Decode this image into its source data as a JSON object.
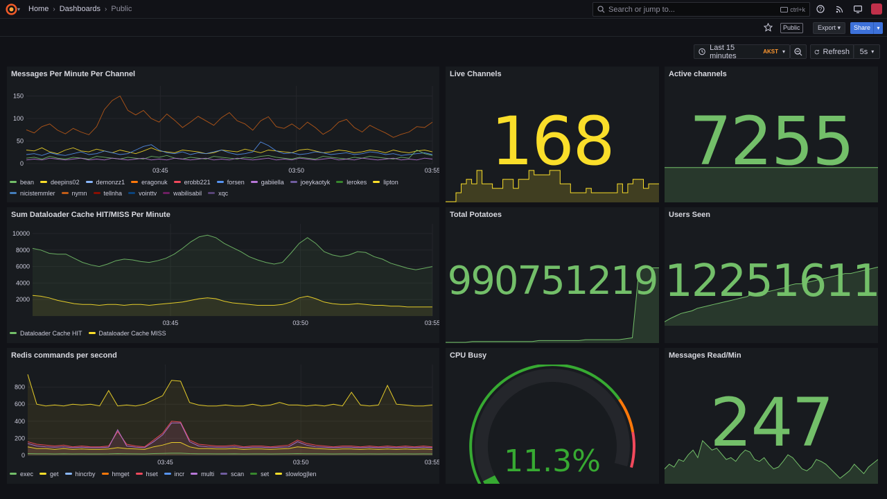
{
  "nav": {
    "breadcrumbs": [
      "Home",
      "Dashboards",
      "Public"
    ],
    "search_placeholder": "Search or jump to...",
    "search_shortcut": "ctrl+k"
  },
  "toolbar": {
    "public_label": "Public",
    "export_label": "Export",
    "share_label": "Share",
    "time_range": "Last 15 minutes",
    "timezone": "AKST",
    "refresh_label": "Refresh",
    "refresh_interval": "5s"
  },
  "panels": {
    "messages": {
      "title": "Messages Per Minute Per Channel",
      "legend": [
        {
          "name": "bean",
          "color": "#73bf69"
        },
        {
          "name": "deepins02",
          "color": "#fade2a"
        },
        {
          "name": "demonzz1",
          "color": "#8ab8ff"
        },
        {
          "name": "eragonuk",
          "color": "#ff780a"
        },
        {
          "name": "erobb221",
          "color": "#f2495c"
        },
        {
          "name": "forsen",
          "color": "#5794f2"
        },
        {
          "name": "gabiiella",
          "color": "#b877d9"
        },
        {
          "name": "joeykaotyk",
          "color": "#705da0"
        },
        {
          "name": "lerokes",
          "color": "#37872d"
        },
        {
          "name": "lipton",
          "color": "#fade2a"
        },
        {
          "name": "nicistemmler",
          "color": "#447ebc"
        },
        {
          "name": "nymn",
          "color": "#c15c17"
        },
        {
          "name": "tellnha",
          "color": "#890f02"
        },
        {
          "name": "vointtv",
          "color": "#0a437c"
        },
        {
          "name": "wabilisabil",
          "color": "#6d1f62"
        },
        {
          "name": "xqc",
          "color": "#584477"
        }
      ]
    },
    "live": {
      "title": "Live Channels",
      "value": "168",
      "color": "#fade2a"
    },
    "active": {
      "title": "Active channels",
      "value": "7255",
      "color": "#73bf69"
    },
    "cache": {
      "title": "Sum Dataloader Cache HIT/MISS Per Minute",
      "legend": [
        {
          "name": "Dataloader Cache HIT",
          "color": "#73bf69"
        },
        {
          "name": "Dataloader Cache MISS",
          "color": "#fade2a"
        }
      ]
    },
    "potatoes": {
      "title": "Total Potatoes",
      "value": "990751219",
      "color": "#73bf69"
    },
    "users": {
      "title": "Users Seen",
      "value": "12251611",
      "color": "#73bf69"
    },
    "redis": {
      "title": "Redis commands per second",
      "legend": [
        {
          "name": "exec",
          "color": "#73bf69"
        },
        {
          "name": "get",
          "color": "#fade2a"
        },
        {
          "name": "hincrby",
          "color": "#8ab8ff"
        },
        {
          "name": "hmget",
          "color": "#ff780a"
        },
        {
          "name": "hset",
          "color": "#f2495c"
        },
        {
          "name": "incr",
          "color": "#5794f2"
        },
        {
          "name": "multi",
          "color": "#b877d9"
        },
        {
          "name": "scan",
          "color": "#705da0"
        },
        {
          "name": "set",
          "color": "#37872d"
        },
        {
          "name": "slowlog|len",
          "color": "#fade2a"
        }
      ]
    },
    "cpu": {
      "title": "CPU Busy",
      "value": "11.3%",
      "percent": 11.3,
      "color": "#37aa32"
    },
    "msgread": {
      "title": "Messages Read/Min",
      "value": "247",
      "color": "#73bf69"
    }
  },
  "chart_data": [
    {
      "type": "line",
      "title": "Messages Per Minute Per Channel",
      "x_ticks": [
        "03:45",
        "03:50",
        "03:55"
      ],
      "y_ticks": [
        0,
        50,
        100,
        150
      ],
      "ylim": [
        0,
        160
      ],
      "series": [
        {
          "name": "nymn",
          "color": "#c15c17",
          "values": [
            75,
            68,
            82,
            88,
            74,
            66,
            78,
            70,
            64,
            82,
            120,
            140,
            150,
            118,
            108,
            118,
            100,
            92,
            110,
            96,
            80,
            92,
            105,
            95,
            85,
            102,
            113,
            95,
            88,
            74,
            95,
            104,
            82,
            78,
            88,
            76,
            92,
            80,
            65,
            75,
            92,
            98,
            80,
            70,
            85,
            76,
            68,
            58,
            65,
            70,
            82,
            80,
            92
          ]
        },
        {
          "name": "lipton",
          "color": "#fade2a",
          "values": [
            30,
            28,
            35,
            26,
            22,
            30,
            35,
            28,
            26,
            32,
            28,
            24,
            30,
            26,
            22,
            28,
            35,
            28,
            26,
            24,
            30,
            28,
            26,
            22,
            24,
            30,
            28,
            26,
            32,
            28,
            24,
            30,
            28,
            26,
            24,
            30,
            32,
            28,
            24,
            26,
            30,
            28,
            24,
            26,
            30,
            28,
            24,
            30,
            26,
            24,
            28,
            30,
            26
          ]
        },
        {
          "name": "forsen",
          "color": "#5794f2",
          "values": [
            20,
            22,
            18,
            24,
            20,
            18,
            22,
            26,
            20,
            22,
            28,
            24,
            20,
            22,
            30,
            38,
            42,
            30,
            24,
            22,
            26,
            20,
            24,
            22,
            26,
            30,
            24,
            20,
            22,
            26,
            48,
            40,
            28,
            22,
            24,
            20,
            22,
            26,
            24,
            20,
            22,
            24,
            20,
            22,
            26,
            24,
            20,
            22,
            18,
            20,
            22,
            24,
            20
          ]
        },
        {
          "name": "bean",
          "color": "#73bf69",
          "values": [
            12,
            14,
            10,
            16,
            12,
            10,
            14,
            12,
            10,
            16,
            14,
            12,
            10,
            14,
            12,
            10,
            16,
            14,
            18,
            12,
            10,
            14,
            12,
            10,
            16,
            14,
            12,
            10,
            14,
            12,
            16,
            18,
            14,
            12,
            10,
            14,
            12,
            10,
            16,
            14,
            12,
            10,
            14,
            12,
            16,
            14,
            12,
            10,
            14,
            12,
            30,
            22,
            18
          ]
        },
        {
          "name": "gabiiella",
          "color": "#b877d9",
          "values": [
            8,
            10,
            8,
            12,
            10,
            8,
            10,
            12,
            8,
            10,
            8,
            12,
            10,
            8,
            10,
            12,
            8,
            10,
            8,
            12,
            10,
            8,
            10,
            12,
            8,
            10,
            8,
            12,
            10,
            8,
            10,
            12,
            8,
            10,
            8,
            12,
            10,
            8,
            10,
            12,
            8,
            10,
            8,
            12,
            10,
            8,
            10,
            12,
            8,
            10,
            8,
            12,
            10
          ]
        }
      ]
    },
    {
      "type": "line",
      "title": "Sum Dataloader Cache HIT/MISS Per Minute",
      "x_ticks": [
        "03:45",
        "03:50",
        "03:55"
      ],
      "y_ticks": [
        2000,
        4000,
        6000,
        8000,
        10000
      ],
      "ylim": [
        0,
        10500
      ],
      "series": [
        {
          "name": "Dataloader Cache HIT",
          "color": "#73bf69",
          "values": [
            8200,
            8000,
            7600,
            7500,
            7500,
            7000,
            6500,
            6200,
            6000,
            6300,
            6700,
            6900,
            6800,
            6600,
            6500,
            6700,
            7000,
            7500,
            8200,
            9000,
            9600,
            9800,
            9500,
            8800,
            8300,
            7800,
            7200,
            6800,
            6500,
            6300,
            6500,
            7600,
            8800,
            9500,
            8800,
            7800,
            7400,
            7200,
            7400,
            7800,
            7700,
            7200,
            6900,
            6400,
            6100,
            5800,
            5600,
            5800,
            6000
          ]
        },
        {
          "name": "Dataloader Cache MISS",
          "color": "#fade2a",
          "values": [
            2500,
            2400,
            2200,
            1900,
            1700,
            1500,
            1400,
            1400,
            1300,
            1400,
            1400,
            1300,
            1400,
            1400,
            1300,
            1400,
            1500,
            1600,
            1700,
            1900,
            2100,
            2200,
            2100,
            1800,
            1600,
            1500,
            1400,
            1300,
            1300,
            1300,
            1400,
            1700,
            2200,
            2400,
            2100,
            1700,
            1500,
            1400,
            1400,
            1500,
            1400,
            1300,
            1300,
            1200,
            1200,
            1100,
            1100,
            1100,
            1100
          ]
        }
      ]
    },
    {
      "type": "line",
      "title": "Redis commands per second",
      "x_ticks": [
        "03:45",
        "03:50",
        "03:55"
      ],
      "y_ticks": [
        0,
        200,
        400,
        600,
        800
      ],
      "ylim": [
        0,
        1000
      ],
      "series": [
        {
          "name": "slowlog|len",
          "color": "#fade2a",
          "values": [
            950,
            600,
            580,
            590,
            580,
            600,
            590,
            600,
            580,
            760,
            580,
            590,
            580,
            600,
            650,
            700,
            880,
            870,
            620,
            590,
            580,
            580,
            590,
            580,
            580,
            600,
            580,
            590,
            620,
            590,
            590,
            580,
            590,
            580,
            600,
            580,
            740,
            590,
            580,
            590,
            820,
            600,
            590,
            580,
            580,
            590
          ]
        },
        {
          "name": "hset",
          "color": "#f2495c",
          "values": [
            160,
            130,
            120,
            110,
            120,
            100,
            110,
            100,
            100,
            110,
            280,
            130,
            110,
            100,
            180,
            260,
            400,
            390,
            180,
            130,
            120,
            110,
            110,
            120,
            100,
            110,
            110,
            100,
            110,
            120,
            180,
            140,
            120,
            110,
            100,
            110,
            110,
            100,
            110,
            100,
            110,
            100,
            110,
            100,
            110,
            100
          ]
        },
        {
          "name": "multi",
          "color": "#b877d9",
          "values": [
            140,
            110,
            100,
            95,
            100,
            90,
            95,
            90,
            90,
            95,
            300,
            110,
            95,
            90,
            160,
            240,
            380,
            380,
            160,
            110,
            100,
            95,
            95,
            100,
            90,
            95,
            95,
            90,
            95,
            100,
            160,
            120,
            100,
            95,
            90,
            95,
            95,
            90,
            95,
            90,
            95,
            90,
            95,
            90,
            95,
            90
          ]
        },
        {
          "name": "get",
          "color": "#fade2a",
          "values": [
            100,
            80,
            80,
            70,
            80,
            70,
            75,
            70,
            70,
            75,
            90,
            80,
            75,
            70,
            100,
            120,
            150,
            150,
            100,
            80,
            80,
            75,
            75,
            80,
            70,
            75,
            75,
            70,
            75,
            80,
            100,
            90,
            80,
            75,
            70,
            75,
            75,
            70,
            75,
            70,
            75,
            70,
            75,
            70,
            75,
            70
          ]
        },
        {
          "name": "exec",
          "color": "#73bf69",
          "values": [
            20,
            18,
            18,
            16,
            18,
            16,
            17,
            16,
            16,
            17,
            20,
            18,
            17,
            16,
            20,
            22,
            25,
            25,
            20,
            18,
            18,
            17,
            17,
            18,
            16,
            17,
            17,
            16,
            17,
            18,
            20,
            19,
            18,
            17,
            16,
            17,
            17,
            16,
            17,
            16,
            17,
            16,
            17,
            16,
            17,
            16
          ]
        }
      ]
    },
    {
      "type": "area",
      "title": "Live Channels",
      "values": [
        150,
        150,
        160,
        170,
        175,
        170,
        185,
        170,
        170,
        165,
        165,
        175,
        175,
        165,
        175,
        175,
        185,
        180,
        180,
        180,
        185,
        185,
        170,
        170,
        160,
        160,
        160,
        165,
        160,
        160,
        160,
        160,
        160,
        170,
        160,
        170,
        175,
        175,
        165,
        170,
        170,
        170
      ]
    },
    {
      "type": "area",
      "title": "Active channels",
      "values": [
        7255,
        7255,
        7255,
        7255,
        7255,
        7255,
        7255,
        7255,
        7255,
        7255
      ]
    },
    {
      "type": "area",
      "title": "Total Potatoes",
      "values": [
        0,
        0,
        0,
        0,
        1,
        1,
        1,
        1,
        1,
        1,
        1,
        1,
        1,
        1,
        2,
        2,
        2,
        2,
        2,
        2,
        2,
        3,
        3,
        3,
        3,
        3,
        3,
        4,
        5,
        80,
        82,
        82,
        82
      ]
    },
    {
      "type": "area",
      "title": "Users Seen",
      "values": [
        5,
        10,
        14,
        18,
        20,
        22,
        26,
        28,
        30,
        32,
        34,
        36,
        38,
        40,
        42,
        44,
        48,
        50,
        52,
        52,
        54,
        56,
        58,
        62,
        64,
        64,
        66,
        68,
        70,
        72,
        74,
        76,
        78,
        80,
        80,
        82,
        84,
        86,
        88,
        90
      ]
    },
    {
      "type": "area",
      "title": "Messages Read/Min",
      "values": [
        30,
        35,
        32,
        40,
        38,
        45,
        50,
        42,
        60,
        55,
        50,
        52,
        46,
        40,
        42,
        38,
        45,
        50,
        48,
        40,
        38,
        42,
        35,
        30,
        32,
        38,
        45,
        42,
        36,
        30,
        28,
        32,
        40,
        38,
        35,
        30,
        25,
        20,
        24,
        28,
        35,
        30,
        25,
        32,
        36,
        40
      ]
    }
  ]
}
